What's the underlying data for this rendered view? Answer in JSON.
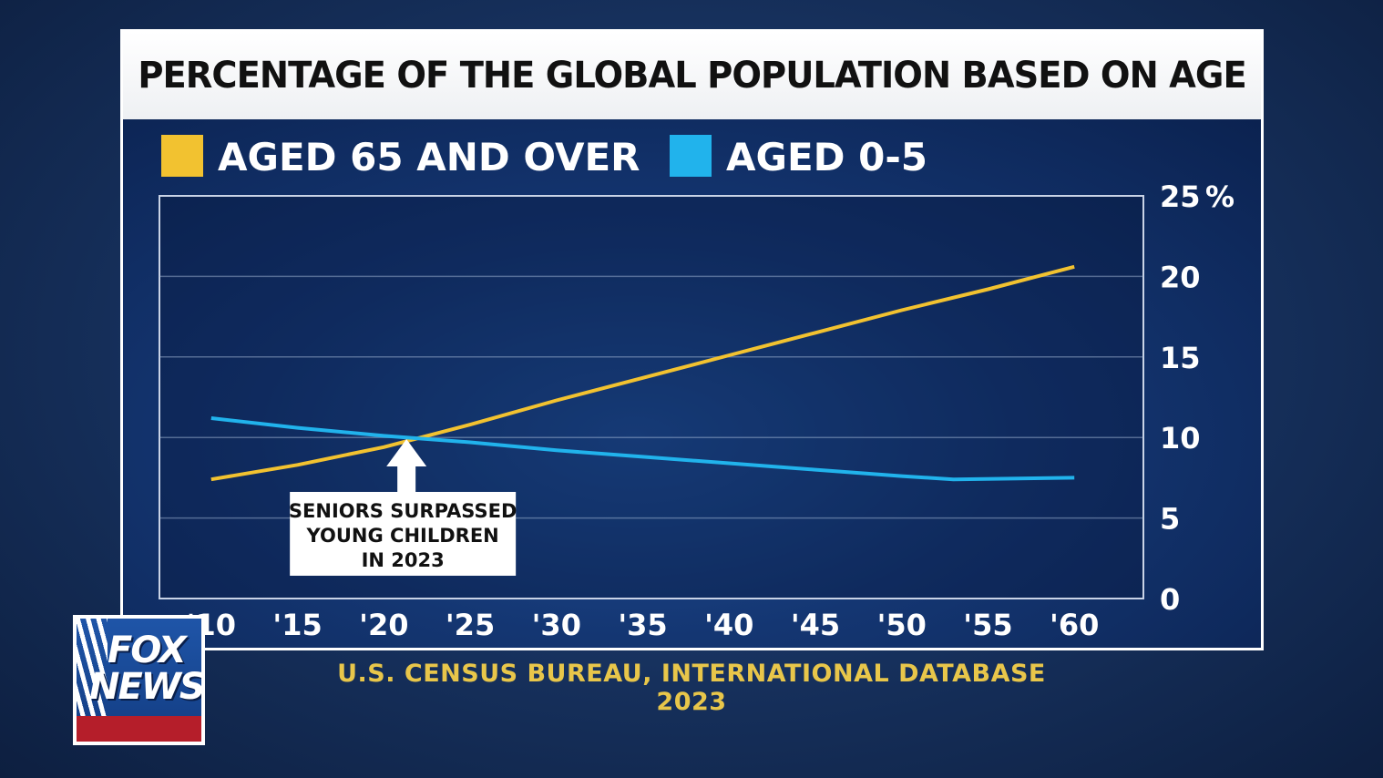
{
  "title": "PERCENTAGE OF THE GLOBAL POPULATION BASED ON AGE",
  "source": {
    "line1": "U.S. CENSUS BUREAU, INTERNATIONAL DATABASE",
    "line2": "2023"
  },
  "logo": {
    "word1": "FOX",
    "word2": "NEWS"
  },
  "colors": {
    "seniors": "#f2c230",
    "children": "#21b3ec",
    "title_bg": "#ffffff"
  },
  "chart_data": {
    "type": "line",
    "title": "PERCENTAGE OF THE GLOBAL POPULATION BASED ON AGE",
    "x_tick_labels": [
      "'10",
      "'15",
      "'20",
      "'25",
      "'30",
      "'35",
      "'40",
      "'45",
      "'50",
      "'55",
      "'60"
    ],
    "x": [
      2010,
      2015,
      2020,
      2025,
      2030,
      2035,
      2040,
      2045,
      2050,
      2055,
      2060
    ],
    "y_ticks": [
      0,
      5,
      10,
      15,
      20,
      25
    ],
    "y_unit": "%",
    "ylim": [
      0,
      25
    ],
    "xlim": [
      2007,
      2064
    ],
    "legend_position": "top-left",
    "series": [
      {
        "name": "AGED 65 AND OVER",
        "color": "#f2c230",
        "points": [
          [
            2010,
            7.4
          ],
          [
            2015,
            8.3
          ],
          [
            2020,
            9.4
          ],
          [
            2025,
            10.8
          ],
          [
            2030,
            12.3
          ],
          [
            2035,
            13.7
          ],
          [
            2040,
            15.1
          ],
          [
            2045,
            16.5
          ],
          [
            2050,
            17.9
          ],
          [
            2055,
            19.2
          ],
          [
            2060,
            20.6
          ]
        ]
      },
      {
        "name": "AGED 0-5",
        "color": "#21b3ec",
        "points": [
          [
            2010,
            11.2
          ],
          [
            2015,
            10.6
          ],
          [
            2020,
            10.1
          ],
          [
            2025,
            9.7
          ],
          [
            2030,
            9.2
          ],
          [
            2035,
            8.8
          ],
          [
            2040,
            8.4
          ],
          [
            2045,
            8.0
          ],
          [
            2050,
            7.6
          ],
          [
            2053,
            7.4
          ],
          [
            2060,
            7.5
          ]
        ]
      }
    ],
    "annotation": {
      "lines": [
        "SENIORS SURPASSED",
        "YOUNG CHILDREN",
        "IN 2023"
      ],
      "x": 2023,
      "y": 9.9
    }
  }
}
